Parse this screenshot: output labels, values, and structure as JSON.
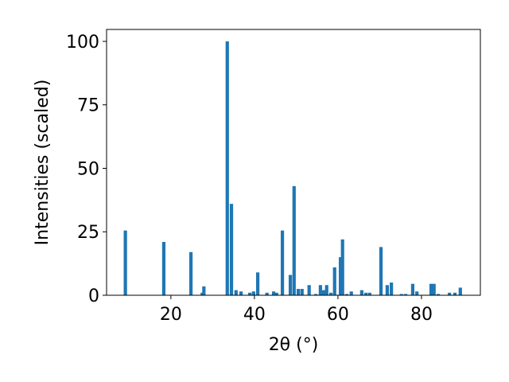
{
  "chart_data": {
    "type": "bar",
    "xlabel": "2θ (°)",
    "ylabel": "Intensities (scaled)",
    "x": [
      9.1,
      18.3,
      24.8,
      27.5,
      27.9,
      33.5,
      34.5,
      35.6,
      36.8,
      38.9,
      39.8,
      40.8,
      43.0,
      44.6,
      45.3,
      46.7,
      48.6,
      49.5,
      50.5,
      51.4,
      53.1,
      54.7,
      55.8,
      56.6,
      57.3,
      58.3,
      59.2,
      60.6,
      61.1,
      62.1,
      63.2,
      65.7,
      66.7,
      67.6,
      70.3,
      71.8,
      72.8,
      75.2,
      76.2,
      77.9,
      78.9,
      82.3,
      83.0,
      84.0,
      86.7,
      88.0,
      89.3
    ],
    "values": [
      25.5,
      21,
      17,
      1,
      3.5,
      100,
      36,
      2,
      1.5,
      1,
      1.5,
      9,
      1,
      1.5,
      1,
      25.5,
      8,
      43,
      2.5,
      2.5,
      4,
      0.5,
      4,
      2,
      4,
      1,
      11,
      15,
      22,
      0.5,
      1.5,
      2,
      1,
      1,
      19,
      4,
      5,
      0.5,
      0.5,
      4.5,
      1.5,
      4.5,
      4.5,
      0.5,
      1,
      1,
      3
    ],
    "color": "#1f77b4",
    "xlim": [
      4.6,
      94.1
    ],
    "ylim": [
      0,
      104.7
    ],
    "xticks": [
      20,
      40,
      60,
      80
    ],
    "yticks": [
      0,
      25,
      50,
      75,
      100
    ]
  }
}
